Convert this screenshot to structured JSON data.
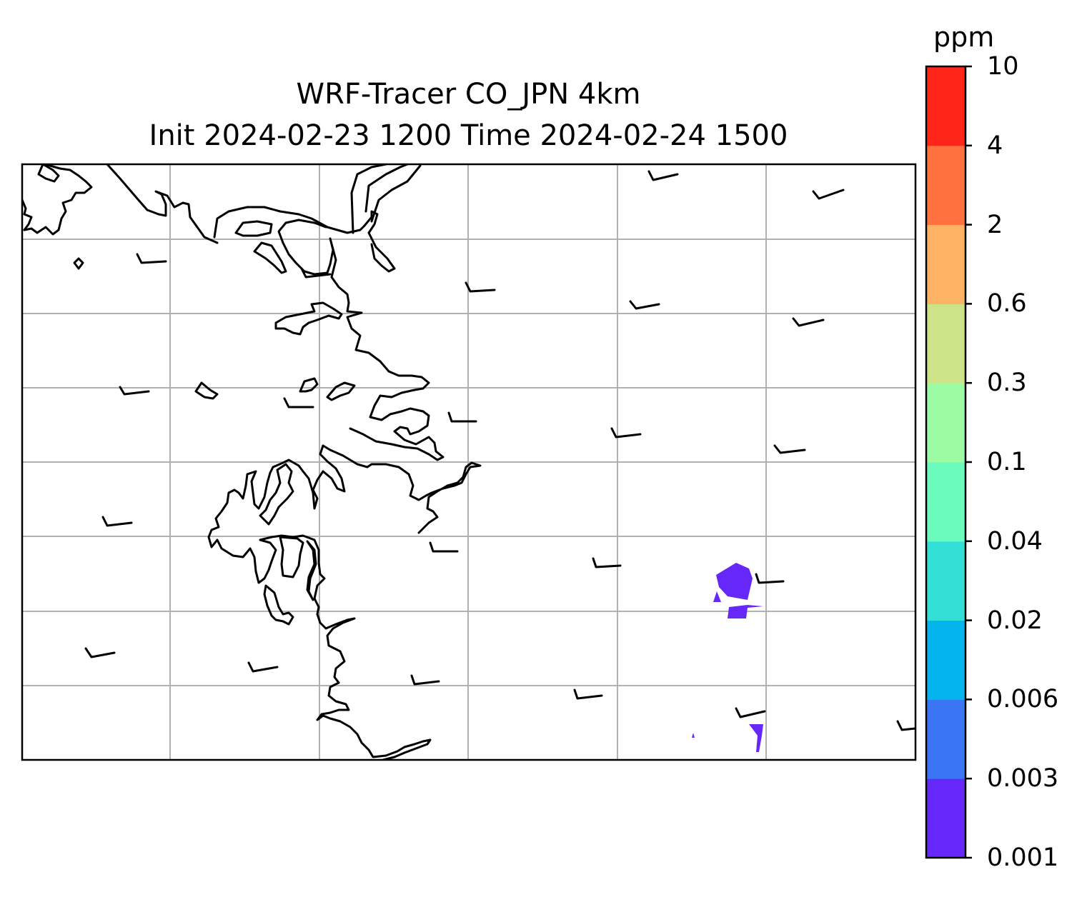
{
  "title": {
    "line1": "WRF-Tracer CO_JPN 4km",
    "line2": "Init 2024-02-23 1200 Time 2024-02-24 1500"
  },
  "colorbar": {
    "unit": "ppm",
    "levels": [
      "0.001",
      "0.003",
      "0.006",
      "0.02",
      "0.04",
      "0.1",
      "0.3",
      "0.6",
      "2",
      "4",
      "10"
    ],
    "colors": [
      "#6628f8",
      "#3a76f4",
      "#04b4ec",
      "#33e0d6",
      "#6bfbbc",
      "#9bfca3",
      "#cde388",
      "#feb263",
      "#ff7240",
      "#ff2518"
    ]
  },
  "map": {
    "gridlines": true,
    "coastline_color": "#000000",
    "plume_color": "#6628f8",
    "barb_color": "#000000"
  }
}
